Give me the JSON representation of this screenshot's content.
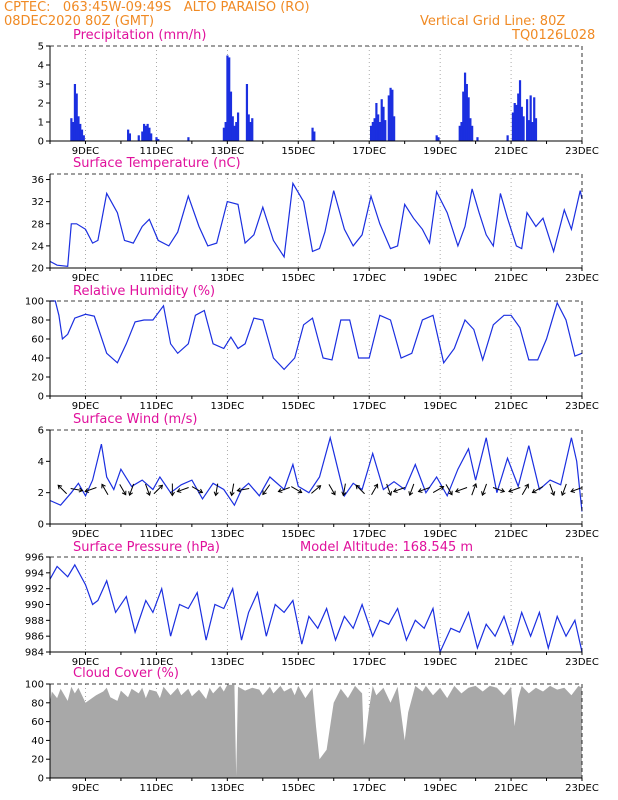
{
  "header": {
    "line1_left": "CPTEC:   063:45W-09:49S   ALTO PARAISO (RO)",
    "line2_left": "08DEC2020 80Z (GMT)",
    "line1_right": "Vertical Grid Line: 80Z",
    "line2_right": "TQ0126L028"
  },
  "colors": {
    "header": "#f08a24",
    "title": "#e0119c",
    "series": "#1b2fe0",
    "cloud": "#a8a8a8",
    "wind_arrow": "#000000"
  },
  "x_axis": {
    "days": [
      8,
      23
    ],
    "tick_labels": [
      "9DEC",
      "11DEC",
      "13DEC",
      "15DEC",
      "17DEC",
      "19DEC",
      "21DEC",
      "23DEC"
    ],
    "tick_days": [
      9,
      11,
      13,
      15,
      17,
      19,
      21,
      23
    ]
  },
  "chart_data": [
    {
      "id": "precip",
      "type": "bar",
      "title": "Precipitation (mm/h)",
      "ylim": [
        0,
        5
      ],
      "yticks": [
        0,
        1,
        2,
        3,
        4,
        5
      ],
      "x_days": [
        8.6,
        8.65,
        8.7,
        8.75,
        8.8,
        8.85,
        8.9,
        8.95,
        10.2,
        10.25,
        10.5,
        10.6,
        10.65,
        10.7,
        10.75,
        10.8,
        10.85,
        11.0,
        11.05,
        11.9,
        12.9,
        12.95,
        13.0,
        13.05,
        13.1,
        13.15,
        13.2,
        13.25,
        13.3,
        13.55,
        13.6,
        13.65,
        13.7,
        15.4,
        15.45,
        17.05,
        17.1,
        17.15,
        17.2,
        17.25,
        17.3,
        17.35,
        17.4,
        17.45,
        17.55,
        17.6,
        17.65,
        17.7,
        18.9,
        18.95,
        19.55,
        19.6,
        19.65,
        19.7,
        19.75,
        19.8,
        19.85,
        19.9,
        20.05,
        20.9,
        21.05,
        21.1,
        21.15,
        21.2,
        21.25,
        21.3,
        21.35,
        21.45,
        21.5,
        21.55,
        21.6,
        21.65,
        21.7
      ],
      "values": [
        1.2,
        1.0,
        3.0,
        2.5,
        1.3,
        0.9,
        0.6,
        0.3,
        0.6,
        0.4,
        0.3,
        0.5,
        0.9,
        0.8,
        0.9,
        0.7,
        0.4,
        0.2,
        0.1,
        0.2,
        0.7,
        1.0,
        4.5,
        4.4,
        2.6,
        1.3,
        0.8,
        1.0,
        1.5,
        3.0,
        1.4,
        1.0,
        1.2,
        0.7,
        0.5,
        0.8,
        1.0,
        1.2,
        2.0,
        1.4,
        1.0,
        2.2,
        1.8,
        1.1,
        2.4,
        2.8,
        2.7,
        1.3,
        0.3,
        0.2,
        0.8,
        1.0,
        2.6,
        3.6,
        3.0,
        2.3,
        1.2,
        0.8,
        0.2,
        0.3,
        1.5,
        2.0,
        1.9,
        2.5,
        3.2,
        1.8,
        1.3,
        2.2,
        1.1,
        2.4,
        1.0,
        2.3,
        1.2
      ]
    },
    {
      "id": "temp",
      "type": "line",
      "title": "Surface Temperature (nC)",
      "ylim": [
        20,
        37
      ],
      "yticks": [
        20,
        24,
        28,
        32,
        36
      ],
      "x_days": [
        8.0,
        8.2,
        8.5,
        8.6,
        8.75,
        9.0,
        9.2,
        9.35,
        9.6,
        9.9,
        10.1,
        10.35,
        10.6,
        10.8,
        11.05,
        11.35,
        11.6,
        11.9,
        12.2,
        12.45,
        12.7,
        13.0,
        13.3,
        13.5,
        13.75,
        14.0,
        14.3,
        14.6,
        14.85,
        15.15,
        15.4,
        15.6,
        15.75,
        16.0,
        16.3,
        16.55,
        16.8,
        17.05,
        17.3,
        17.6,
        17.8,
        18.0,
        18.25,
        18.5,
        18.7,
        18.9,
        19.2,
        19.5,
        19.7,
        19.9,
        20.1,
        20.3,
        20.5,
        20.7,
        20.9,
        21.15,
        21.3,
        21.45,
        21.7,
        21.9,
        22.2,
        22.5,
        22.7,
        22.95,
        23.0
      ],
      "values": [
        21.2,
        20.5,
        20.3,
        28.0,
        28.0,
        27.0,
        24.5,
        25.0,
        33.5,
        30.0,
        25.0,
        24.5,
        27.5,
        28.8,
        25.0,
        24.0,
        26.5,
        33.0,
        27.5,
        24.0,
        24.5,
        32.0,
        31.5,
        24.5,
        26.0,
        31.0,
        25.0,
        22.0,
        35.3,
        32.0,
        23.0,
        23.5,
        26.5,
        34.0,
        27.0,
        24.0,
        26.0,
        33.0,
        28.0,
        23.5,
        24.0,
        31.5,
        29.0,
        27.0,
        24.5,
        33.8,
        30.0,
        24.0,
        27.5,
        34.3,
        30.0,
        26.0,
        24.0,
        33.5,
        29.0,
        24.0,
        23.5,
        30.0,
        27.5,
        29.0,
        23.0,
        30.5,
        27.0,
        34.0,
        32.5
      ]
    },
    {
      "id": "rh",
      "type": "line",
      "title": "Relative Humidity (%)",
      "ylim": [
        0,
        100
      ],
      "yticks": [
        0,
        20,
        40,
        60,
        80,
        100
      ],
      "x_days": [
        8.0,
        8.15,
        8.25,
        8.35,
        8.5,
        8.7,
        9.0,
        9.25,
        9.6,
        9.9,
        10.15,
        10.4,
        10.65,
        10.9,
        11.2,
        11.4,
        11.6,
        11.9,
        12.1,
        12.35,
        12.6,
        12.9,
        13.1,
        13.3,
        13.5,
        13.75,
        14.0,
        14.3,
        14.6,
        14.9,
        15.15,
        15.4,
        15.7,
        15.95,
        16.2,
        16.45,
        16.7,
        17.0,
        17.3,
        17.6,
        17.9,
        18.2,
        18.5,
        18.8,
        19.1,
        19.4,
        19.7,
        19.95,
        20.2,
        20.5,
        20.8,
        21.0,
        21.25,
        21.5,
        21.75,
        22.0,
        22.3,
        22.55,
        22.8,
        23.0
      ],
      "values": [
        100,
        100,
        85,
        60,
        65,
        82,
        86,
        84,
        45,
        35,
        55,
        78,
        80,
        80,
        95,
        55,
        45,
        55,
        85,
        90,
        55,
        50,
        62,
        50,
        55,
        82,
        80,
        40,
        28,
        40,
        75,
        82,
        40,
        38,
        80,
        80,
        40,
        40,
        85,
        80,
        40,
        45,
        80,
        85,
        35,
        50,
        80,
        70,
        38,
        75,
        85,
        85,
        72,
        38,
        38,
        60,
        98,
        80,
        42,
        45
      ]
    },
    {
      "id": "wind",
      "type": "line",
      "title": "Surface Wind (m/s)",
      "ylim": [
        0,
        6
      ],
      "yticks": [
        0,
        2,
        4,
        6
      ],
      "x_days": [
        8.0,
        8.3,
        8.6,
        8.8,
        9.0,
        9.2,
        9.45,
        9.6,
        9.8,
        10.0,
        10.3,
        10.6,
        10.9,
        11.1,
        11.4,
        11.7,
        12.0,
        12.3,
        12.6,
        12.9,
        13.2,
        13.4,
        13.6,
        13.9,
        14.2,
        14.6,
        14.85,
        15.0,
        15.3,
        15.6,
        15.9,
        16.3,
        16.55,
        16.8,
        17.1,
        17.4,
        17.7,
        18.0,
        18.3,
        18.6,
        18.9,
        19.2,
        19.5,
        19.8,
        20.0,
        20.3,
        20.6,
        20.9,
        21.2,
        21.5,
        21.8,
        22.1,
        22.4,
        22.7,
        22.85,
        23.0
      ],
      "values": [
        1.5,
        1.2,
        2.0,
        2.6,
        1.8,
        2.8,
        5.1,
        3.0,
        2.2,
        3.5,
        2.4,
        2.8,
        2.2,
        3.0,
        2.0,
        2.5,
        2.8,
        1.6,
        2.6,
        2.2,
        1.2,
        2.2,
        2.6,
        1.8,
        3.0,
        2.2,
        3.8,
        2.4,
        2.0,
        3.0,
        5.5,
        1.8,
        2.6,
        2.2,
        4.5,
        2.2,
        2.7,
        2.2,
        3.8,
        2.0,
        3.0,
        1.8,
        3.5,
        4.8,
        2.8,
        5.5,
        2.0,
        4.2,
        2.4,
        5.0,
        2.2,
        2.8,
        2.5,
        5.5,
        4.0,
        0.8
      ],
      "arrow_days": [
        8.35,
        8.75,
        9.15,
        9.55,
        10.05,
        10.3,
        10.75,
        11.05,
        11.45,
        11.75,
        12.15,
        12.7,
        13.15,
        13.45,
        14.1,
        14.6,
        14.95,
        15.5,
        15.95,
        16.3,
        16.75,
        17.15,
        17.55,
        17.85,
        18.2,
        18.55,
        18.95,
        19.25,
        19.6,
        19.95,
        20.25,
        20.65,
        21.1,
        21.4,
        21.75,
        22.15,
        22.5,
        22.85
      ],
      "arrow_dirs": [
        135,
        350,
        200,
        120,
        300,
        250,
        290,
        45,
        270,
        200,
        330,
        260,
        260,
        190,
        235,
        200,
        330,
        40,
        300,
        260,
        135,
        60,
        290,
        200,
        250,
        200,
        30,
        300,
        200,
        70,
        250,
        340,
        200,
        60,
        210,
        290,
        250,
        200
      ]
    },
    {
      "id": "press",
      "type": "line",
      "title": "Surface Pressure (hPa)",
      "subtitle": "Model Altitude: 168.545 m",
      "ylim": [
        984,
        996
      ],
      "yticks": [
        984,
        986,
        988,
        990,
        992,
        994,
        996
      ],
      "x_days": [
        8.0,
        8.2,
        8.5,
        8.7,
        9.0,
        9.2,
        9.35,
        9.6,
        9.85,
        10.15,
        10.4,
        10.7,
        10.9,
        11.15,
        11.4,
        11.65,
        11.9,
        12.15,
        12.4,
        12.65,
        12.9,
        13.15,
        13.4,
        13.6,
        13.85,
        14.1,
        14.35,
        14.6,
        14.85,
        15.1,
        15.3,
        15.55,
        15.8,
        16.05,
        16.3,
        16.55,
        16.8,
        17.1,
        17.3,
        17.55,
        17.8,
        18.05,
        18.3,
        18.55,
        18.8,
        19.0,
        19.3,
        19.55,
        19.8,
        20.05,
        20.3,
        20.55,
        20.8,
        21.05,
        21.3,
        21.55,
        21.8,
        22.05,
        22.3,
        22.55,
        22.8,
        23.0
      ],
      "values": [
        993.2,
        994.8,
        993.5,
        995.0,
        992.5,
        990.0,
        990.5,
        993.0,
        989.0,
        991.0,
        986.5,
        990.5,
        989.0,
        992.0,
        986.0,
        990.0,
        989.5,
        991.5,
        985.5,
        990.0,
        989.5,
        992.0,
        985.5,
        989.0,
        991.5,
        986.0,
        990.0,
        989.0,
        990.5,
        985.0,
        988.5,
        987.0,
        989.5,
        985.5,
        988.5,
        987.0,
        990.0,
        986.0,
        988.0,
        987.5,
        989.5,
        985.5,
        988.0,
        987.0,
        989.5,
        984.0,
        987.0,
        986.5,
        989.0,
        984.5,
        987.5,
        986.0,
        988.5,
        985.0,
        989.0,
        986.0,
        989.0,
        984.5,
        988.5,
        986.0,
        988.0,
        984.0
      ]
    },
    {
      "id": "cloud",
      "type": "area",
      "title": "Cloud Cover (%)",
      "ylim": [
        0,
        100
      ],
      "yticks": [
        0,
        20,
        40,
        60,
        80,
        100
      ],
      "x_days": [
        8.0,
        8.05,
        8.2,
        8.3,
        8.5,
        8.6,
        8.7,
        8.8,
        9.0,
        9.3,
        9.5,
        9.6,
        9.7,
        9.9,
        10.0,
        10.2,
        10.3,
        10.5,
        10.6,
        10.7,
        10.8,
        11.0,
        11.1,
        11.2,
        11.4,
        11.6,
        11.7,
        11.9,
        12.0,
        12.2,
        12.4,
        12.5,
        12.6,
        12.8,
        12.9,
        13.0,
        13.2,
        13.25,
        13.3,
        13.5,
        13.7,
        13.9,
        14.0,
        14.2,
        14.3,
        14.5,
        14.6,
        14.8,
        14.9,
        15.0,
        15.2,
        15.4,
        15.5,
        15.6,
        15.8,
        16.0,
        16.2,
        16.4,
        16.6,
        16.8,
        16.85,
        16.9,
        17.0,
        17.1,
        17.2,
        17.4,
        17.6,
        17.8,
        18.0,
        18.1,
        18.3,
        18.5,
        18.6,
        18.8,
        19.0,
        19.2,
        19.4,
        19.6,
        19.8,
        20.0,
        20.2,
        20.4,
        20.6,
        20.8,
        21.0,
        21.1,
        21.2,
        21.3,
        21.5,
        21.7,
        21.9,
        22.1,
        22.3,
        22.5,
        22.7,
        22.9,
        23.0
      ],
      "values": [
        80,
        92,
        85,
        95,
        82,
        97,
        90,
        96,
        80,
        88,
        92,
        96,
        86,
        82,
        93,
        86,
        95,
        90,
        96,
        85,
        94,
        92,
        85,
        97,
        88,
        96,
        88,
        95,
        87,
        94,
        84,
        96,
        90,
        98,
        92,
        99,
        99,
        2,
        97,
        93,
        96,
        94,
        88,
        97,
        90,
        98,
        92,
        96,
        88,
        98,
        85,
        96,
        55,
        20,
        30,
        80,
        95,
        85,
        98,
        90,
        35,
        45,
        75,
        98,
        88,
        96,
        80,
        97,
        40,
        70,
        98,
        92,
        98,
        88,
        96,
        85,
        98,
        90,
        96,
        98,
        92,
        98,
        96,
        88,
        97,
        55,
        85,
        98,
        90,
        96,
        92,
        98,
        94,
        96,
        88,
        98,
        96
      ]
    }
  ]
}
